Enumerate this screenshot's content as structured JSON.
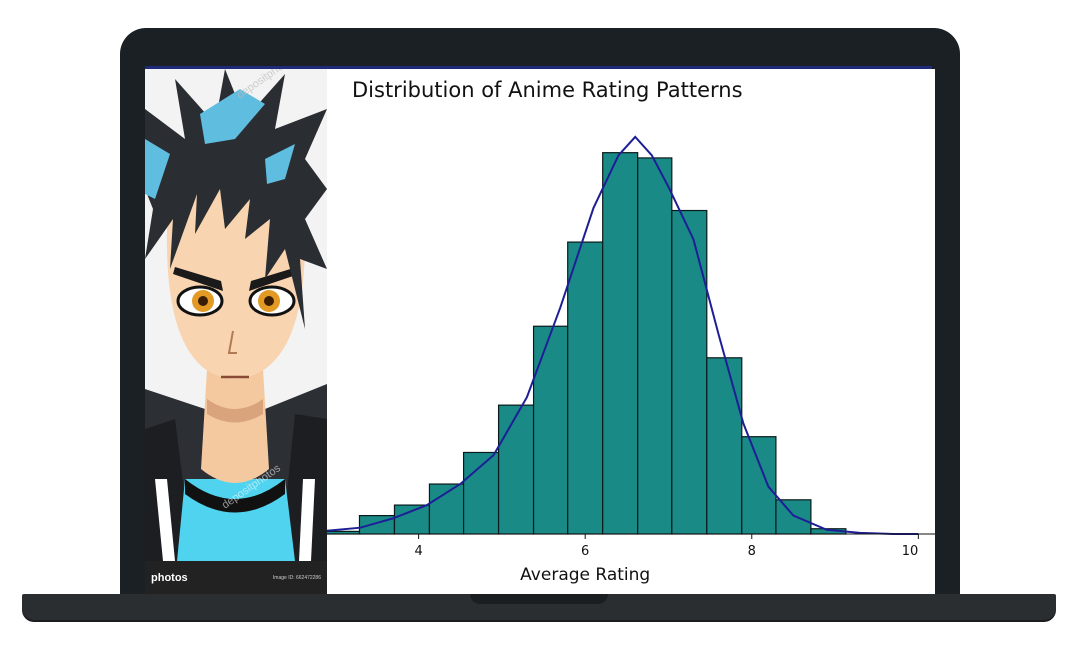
{
  "ad": {
    "brand": "photos",
    "image_id": "Image ID: 662472286",
    "watermark": "depositphotos"
  },
  "colors": {
    "bar_fill": "#1a8a87",
    "bar_edge": "#0a1a1a",
    "kde_line": "#1e1e96",
    "laptop_body": "#1b2024"
  },
  "chart_data": {
    "type": "bar",
    "title": "Distribution of Anime Rating Patterns",
    "xlabel": "Average Rating",
    "ylabel": "",
    "xlim": [
      2.9,
      10.2
    ],
    "ylim": [
      0,
      770
    ],
    "xticks": [
      4,
      6,
      8,
      10
    ],
    "bin_edges": [
      2.88,
      3.29,
      3.71,
      4.13,
      4.54,
      4.96,
      5.38,
      5.79,
      6.21,
      6.63,
      7.04,
      7.46,
      7.88,
      8.29,
      8.71,
      9.13,
      9.54
    ],
    "values": [
      5,
      35,
      55,
      95,
      155,
      245,
      395,
      555,
      725,
      715,
      615,
      335,
      185,
      65,
      10,
      0
    ],
    "kde": {
      "x": [
        2.9,
        3.3,
        3.7,
        4.1,
        4.5,
        4.9,
        5.3,
        5.7,
        6.1,
        6.4,
        6.6,
        6.8,
        7.0,
        7.3,
        7.6,
        7.9,
        8.2,
        8.5,
        8.9,
        9.3,
        9.7,
        10.0
      ],
      "y": [
        6,
        12,
        30,
        55,
        95,
        150,
        260,
        430,
        620,
        720,
        755,
        720,
        660,
        560,
        380,
        210,
        90,
        35,
        8,
        2,
        0,
        0
      ]
    },
    "grid": false,
    "legend": "none"
  }
}
